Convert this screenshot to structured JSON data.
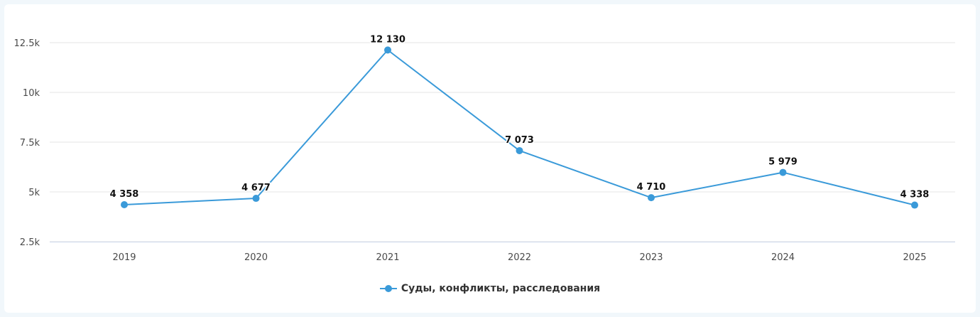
{
  "chart_data": {
    "type": "line",
    "title": "",
    "xlabel": "",
    "ylabel": "",
    "categories": [
      "2019",
      "2020",
      "2021",
      "2022",
      "2023",
      "2024",
      "2025"
    ],
    "series": [
      {
        "name": "Суды, конфликты, расследования",
        "values": [
          4358,
          4677,
          12130,
          7073,
          4710,
          5979,
          4338
        ],
        "labels": [
          "4 358",
          "4 677",
          "12 130",
          "7 073",
          "4 710",
          "5 979",
          "4 338"
        ],
        "color": "#3a9ad9"
      }
    ],
    "yticks": [
      2500,
      5000,
      7500,
      10000,
      12500
    ],
    "ytick_labels": [
      "2.5k",
      "5k",
      "7.5k",
      "10k",
      "12.5k"
    ],
    "ylim": [
      2500,
      12500
    ],
    "grid": true,
    "legend": "bottom-center"
  }
}
